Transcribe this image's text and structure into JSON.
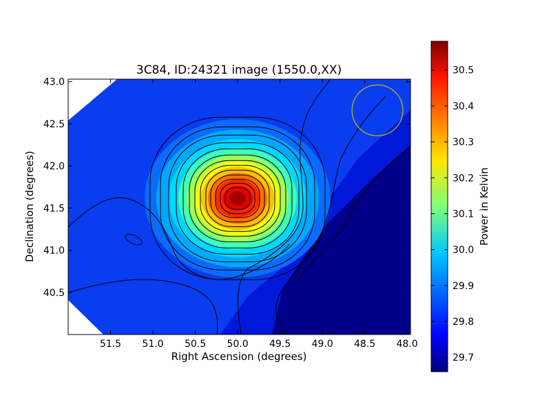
{
  "chart_data": {
    "type": "heatmap",
    "title": "3C84, ID:24321 image (1550.0,XX)",
    "xlabel": "Right Ascension (degrees)",
    "ylabel": "Declination (degrees)",
    "xlim": [
      52.0,
      47.96
    ],
    "ylim": [
      40.0,
      43.03
    ],
    "x_ticks": [
      51.5,
      51.0,
      50.5,
      50.0,
      49.5,
      49.0,
      48.5,
      48.0
    ],
    "x_tick_labels": [
      "51.5",
      "51.0",
      "50.5",
      "50.0",
      "49.5",
      "49.0",
      "48.5",
      "48.0"
    ],
    "y_ticks": [
      40.5,
      41.0,
      41.5,
      42.0,
      42.5,
      43.0
    ],
    "y_tick_labels": [
      "40.5",
      "41.0",
      "41.5",
      "42.0",
      "42.5",
      "43.0"
    ],
    "colorbar": {
      "label": "Power in Kelvin",
      "range": [
        29.66,
        30.58
      ],
      "ticks": [
        29.7,
        29.8,
        29.9,
        30.0,
        30.1,
        30.2,
        30.3,
        30.4,
        30.5
      ],
      "tick_labels": [
        "29.7",
        "29.8",
        "29.9",
        "30.0",
        "30.1",
        "30.2",
        "30.3",
        "30.4",
        "30.5"
      ],
      "colormap": "jet"
    },
    "peak": {
      "ra": 49.96,
      "dec": 41.55,
      "value": 30.58
    },
    "secondary_feature": {
      "ra": 51.18,
      "dec": 41.12
    },
    "beam_circle": {
      "ra": 48.35,
      "dec": 42.66,
      "radius_deg": 0.3,
      "color": "#bfbf00"
    },
    "contour_color": "#000000",
    "grid": false
  }
}
